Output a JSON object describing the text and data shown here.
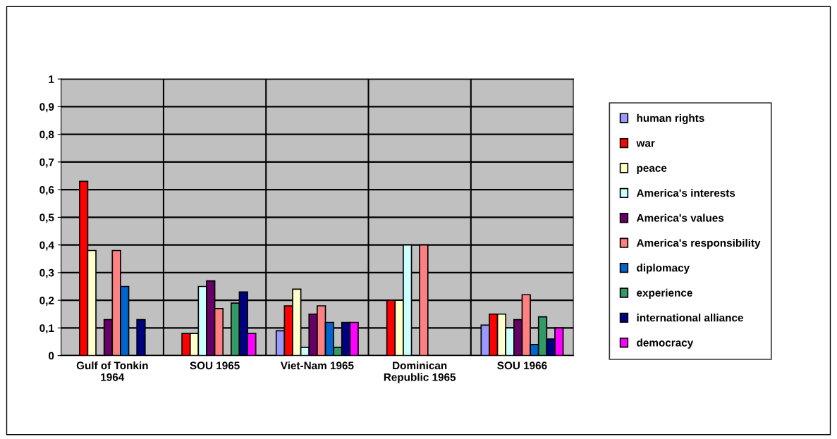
{
  "chart_data": {
    "type": "bar",
    "categories": [
      "Gulf of Tonkin\n1964",
      "SOU 1965",
      "Viet-Nam 1965",
      "Dominican\nRepublic 1965",
      "SOU 1966"
    ],
    "series": [
      {
        "name": "human rights",
        "color": "#9999ff",
        "values": [
          null,
          null,
          0.09,
          null,
          0.11
        ]
      },
      {
        "name": "war",
        "color": "#ff0000",
        "values": [
          0.63,
          0.08,
          0.18,
          0.2,
          0.15
        ]
      },
      {
        "name": "peace",
        "color": "#ffffcc",
        "values": [
          0.38,
          0.08,
          0.24,
          0.2,
          0.15
        ]
      },
      {
        "name": "America's interests",
        "color": "#ccffff",
        "values": [
          null,
          0.25,
          0.03,
          0.4,
          0.1
        ]
      },
      {
        "name": "America's values",
        "color": "#660066",
        "values": [
          0.13,
          0.27,
          0.15,
          null,
          0.13
        ]
      },
      {
        "name": "America's responsibility",
        "color": "#ff8080",
        "values": [
          0.38,
          0.17,
          0.18,
          0.4,
          0.22
        ]
      },
      {
        "name": "diplomacy",
        "color": "#0066cc",
        "values": [
          0.25,
          null,
          0.12,
          null,
          0.04
        ]
      },
      {
        "name": "experience",
        "color": "#339966",
        "values": [
          null,
          0.19,
          0.03,
          null,
          0.14
        ]
      },
      {
        "name": "international alliance",
        "color": "#000080",
        "values": [
          0.13,
          0.23,
          0.12,
          null,
          0.06
        ]
      },
      {
        "name": "democracy",
        "color": "#ff00ff",
        "values": [
          null,
          0.08,
          0.12,
          null,
          0.1
        ]
      }
    ],
    "ylim": [
      0,
      1
    ],
    "yticks": [
      0,
      {
        "value": 0.1,
        "label": "0,1"
      },
      {
        "value": 0.2,
        "label": "0,2"
      },
      {
        "value": 0.3,
        "label": "0,3"
      },
      {
        "value": 0.4,
        "label": "0,4"
      },
      {
        "value": 0.5,
        "label": "0,5"
      },
      {
        "value": 0.6,
        "label": "0,6"
      },
      {
        "value": 0.7,
        "label": "0,7"
      },
      {
        "value": 0.8,
        "label": "0,8"
      },
      {
        "value": 0.9,
        "label": "0,9"
      },
      1
    ],
    "grid": true,
    "legend": "right"
  }
}
